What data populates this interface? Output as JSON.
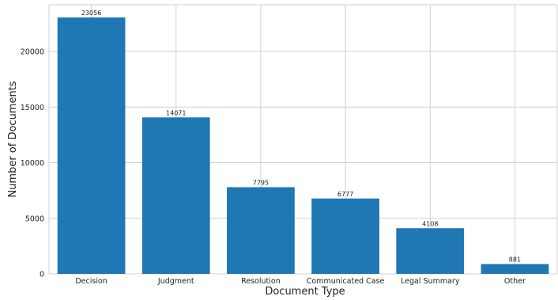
{
  "chart_data": {
    "type": "bar",
    "categories": [
      "Decision",
      "Judgment",
      "Resolution",
      "Communicated Case",
      "Legal Summary",
      "Other"
    ],
    "values": [
      23056,
      14071,
      7795,
      6777,
      4108,
      881
    ],
    "data_labels": [
      "23056",
      "14071",
      "7795",
      "6777",
      "4108",
      "881"
    ],
    "title": "",
    "xlabel": "Document Type",
    "ylabel": "Number of Documents",
    "ylim": [
      0,
      24200
    ],
    "yticks": [
      0,
      5000,
      10000,
      15000,
      20000
    ],
    "ytick_labels": [
      "0",
      "5000",
      "10000",
      "15000",
      "20000"
    ],
    "grid": true,
    "bar_color": "#1f77b4",
    "grid_color": "#d0d0d0"
  }
}
